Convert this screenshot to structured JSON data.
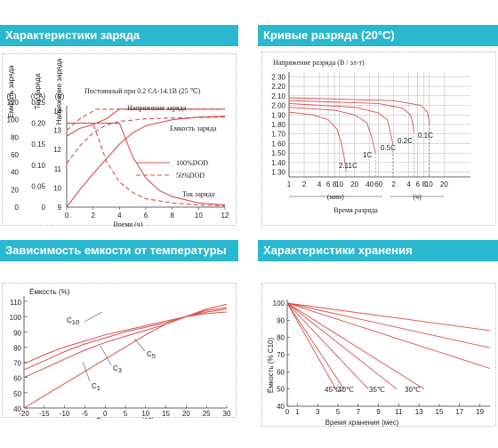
{
  "headers": {
    "charge": "Характеристики заряда",
    "discharge": "Кривые разряда (20°C)",
    "temperature": "Зависимость емкости от температуры",
    "storage": "Характеристики хранения"
  },
  "chart_data": [
    {
      "type": "line",
      "title": "Постоянный при 0.2 СА-14.1В (25 ℃)",
      "xlabel": "Время (ч)",
      "xlim": [
        0,
        12
      ],
      "x_ticks": [
        "0",
        "2",
        "4",
        "6",
        "8",
        "10",
        "12"
      ],
      "axes": [
        {
          "label": "Емкость заряда",
          "unit": "(C)",
          "ticks": [
            "120",
            "100",
            "80",
            "60",
            "40",
            "20",
            "0"
          ]
        },
        {
          "label": "Ток заряда",
          "unit": "(CA)",
          "ticks": [
            "0.25",
            "0.20",
            "0.15",
            "0.10",
            "0.05",
            "0"
          ]
        },
        {
          "label": "Напряжение заряда",
          "unit": "(V)",
          "ticks": [
            "14",
            "13",
            "12",
            "11",
            "10",
            "9"
          ]
        }
      ],
      "legend": [
        {
          "label": "100%DOD",
          "style": "solid"
        },
        {
          "label": "50%DOD",
          "style": "dashed"
        }
      ],
      "annotations": [
        "Напряжение заряда",
        "Емкость заряда",
        "Ток заряда"
      ],
      "series": [
        {
          "name": "Напряжение заряда",
          "dod": "100%DOD",
          "x": [
            0,
            1,
            2,
            3,
            4,
            4.5,
            12
          ],
          "y": [
            12.7,
            13.1,
            13.3,
            13.6,
            14.1,
            14.1,
            14.1
          ]
        },
        {
          "name": "Напряжение заряда",
          "dod": "50%DOD",
          "x": [
            0,
            1,
            2,
            2.2,
            12
          ],
          "y": [
            13.0,
            13.6,
            14.0,
            14.1,
            14.1
          ]
        },
        {
          "name": "Емкость заряда",
          "dod": "100%DOD",
          "x": [
            0,
            1,
            2,
            3,
            4,
            5,
            6,
            8,
            10,
            12
          ],
          "y": [
            0,
            20,
            38,
            55,
            72,
            85,
            93,
            100,
            103,
            104
          ]
        },
        {
          "name": "Емкость заряда",
          "dod": "50%DOD",
          "x": [
            0,
            1,
            2,
            3,
            4,
            6,
            8,
            12
          ],
          "y": [
            50,
            70,
            85,
            94,
            98,
            101,
            102,
            103
          ]
        },
        {
          "name": "Ток заряда",
          "dod": "100%DOD",
          "x": [
            0,
            4,
            5,
            6,
            7,
            8,
            10,
            12
          ],
          "y": [
            0.2,
            0.2,
            0.12,
            0.07,
            0.04,
            0.025,
            0.01,
            0.005
          ]
        },
        {
          "name": "Ток заряда",
          "dod": "50%DOD",
          "x": [
            0,
            2,
            3,
            4,
            5,
            6,
            8,
            10,
            12
          ],
          "y": [
            0.2,
            0.2,
            0.11,
            0.06,
            0.035,
            0.02,
            0.01,
            0.005,
            0.003
          ]
        }
      ]
    },
    {
      "type": "line",
      "ylabel": "Напряжение разряда (В / эл-т)",
      "xlabel": "Время разряда",
      "ylim": [
        1.25,
        2.35
      ],
      "y_ticks": [
        "2.30",
        "2.20",
        "2.10",
        "2.00",
        "1.90",
        "1.80",
        "1.70",
        "1.60",
        "1.50",
        "1.40",
        "1.30"
      ],
      "x_ticks": [
        "1",
        "2",
        "4",
        "6",
        "8",
        "10",
        "20",
        "40",
        "60",
        "2",
        "4",
        "6",
        "8",
        "10",
        "20"
      ],
      "x_unit_minutes": "(мин)",
      "x_unit_hours": "(ч)",
      "x_log_axis": true,
      "curve_labels": [
        "2.11C",
        "1C",
        "0.5C",
        "0.2C",
        "0.1C"
      ],
      "series": [
        {
          "name": "2.11C",
          "x_min": [
            1,
            3,
            6,
            9,
            11,
            12.5,
            13.5
          ],
          "y": [
            1.93,
            1.9,
            1.85,
            1.75,
            1.6,
            1.45,
            1.32
          ]
        },
        {
          "name": "1C",
          "x_min": [
            1,
            8,
            20,
            35,
            45,
            52
          ],
          "y": [
            1.98,
            1.95,
            1.9,
            1.82,
            1.65,
            1.5
          ]
        },
        {
          "name": "0.5C",
          "x_min": [
            1,
            20,
            60,
            90,
            105,
            115
          ],
          "y": [
            2.02,
            1.98,
            1.92,
            1.85,
            1.7,
            1.6
          ]
        },
        {
          "name": "0.2C",
          "x_min": [
            1,
            60,
            180,
            260,
            290,
            300
          ],
          "y": [
            2.05,
            2.02,
            1.97,
            1.9,
            1.8,
            1.72
          ]
        },
        {
          "name": "0.1C",
          "x_min": [
            1,
            120,
            420,
            560,
            600,
            615
          ],
          "y": [
            2.08,
            2.05,
            2.0,
            1.93,
            1.85,
            1.8
          ]
        }
      ]
    },
    {
      "type": "line",
      "ylabel": "Ёмкость (%)",
      "xlabel": "Температура (℃)",
      "xlim": [
        -20,
        30
      ],
      "ylim": [
        40,
        110
      ],
      "x_ticks": [
        "-20",
        "-15",
        "-10",
        "-5",
        "0",
        "5",
        "10",
        "15",
        "20",
        "25",
        "30"
      ],
      "y_ticks": [
        "110",
        "100",
        "90",
        "80",
        "70",
        "60",
        "50",
        "40"
      ],
      "series": [
        {
          "name": "C10",
          "x": [
            -20,
            -15,
            -10,
            -5,
            0,
            5,
            10,
            15,
            20,
            25,
            30
          ],
          "y": [
            69,
            75,
            80,
            84,
            88,
            91,
            94,
            97,
            100,
            102,
            103
          ]
        },
        {
          "name": "C5",
          "x": [
            -20,
            -15,
            -10,
            -5,
            0,
            5,
            10,
            15,
            20,
            25,
            30
          ],
          "y": [
            65,
            71,
            77,
            82,
            86,
            90,
            93,
            96,
            100,
            103,
            105
          ]
        },
        {
          "name": "C3",
          "x": [
            -20,
            -15,
            -10,
            -5,
            0,
            5,
            10,
            15,
            20,
            25,
            30
          ],
          "y": [
            60,
            66,
            72,
            78,
            83,
            87,
            91,
            95,
            100,
            104,
            106
          ]
        },
        {
          "name": "C1",
          "x": [
            -20,
            -15,
            -10,
            -5,
            0,
            5,
            10,
            15,
            20,
            25,
            30
          ],
          "y": [
            40,
            48,
            56,
            64,
            72,
            80,
            88,
            95,
            100,
            105,
            108
          ]
        }
      ]
    },
    {
      "type": "line",
      "ylabel": "Ёмкость (% С10)",
      "xlabel": "Время хранения (мес)",
      "xlim": [
        0,
        20
      ],
      "ylim": [
        40,
        100
      ],
      "x_ticks": [
        "0",
        "1",
        "3",
        "5",
        "7",
        "9",
        "11",
        "13",
        "15",
        "17",
        "19"
      ],
      "y_ticks": [
        "100",
        "90",
        "80",
        "70",
        "60",
        "50",
        "40"
      ],
      "curve_labels": [
        "45℃",
        "40℃",
        "35℃",
        "30℃"
      ],
      "series": [
        {
          "name": "45℃",
          "x": [
            0,
            4.8
          ],
          "y": [
            100,
            50
          ]
        },
        {
          "name": "40℃",
          "x": [
            0,
            5.6
          ],
          "y": [
            100,
            50
          ]
        },
        {
          "name": "35℃",
          "x": [
            0,
            8
          ],
          "y": [
            100,
            50
          ]
        },
        {
          "name": "30℃",
          "x": [
            0,
            10.8
          ],
          "y": [
            100,
            50
          ]
        },
        {
          "x": [
            0,
            13.5
          ],
          "y": [
            100,
            50
          ]
        },
        {
          "x": [
            0,
            20
          ],
          "y": [
            100,
            62
          ]
        },
        {
          "x": [
            0,
            20
          ],
          "y": [
            100,
            74
          ]
        },
        {
          "x": [
            0,
            20
          ],
          "y": [
            100,
            84
          ]
        }
      ]
    }
  ]
}
